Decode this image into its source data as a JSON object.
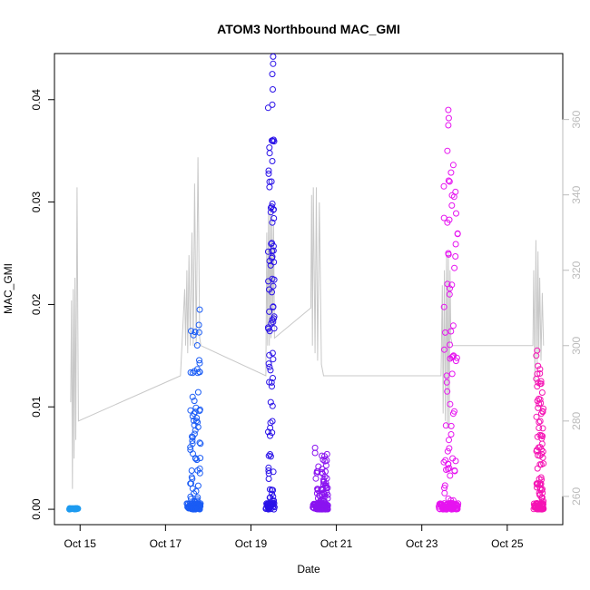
{
  "chart_data": {
    "type": "scatter",
    "title": "ATOM3 Northbound MAC_GMI",
    "xlabel": "Date",
    "ylabel": "MAC_GMI",
    "x_ticks": [
      "Oct 15",
      "Oct 17",
      "Oct 19",
      "Oct 21",
      "Oct 23",
      "Oct 25"
    ],
    "x_tick_days": [
      15,
      17,
      19,
      21,
      23,
      25
    ],
    "xlim_days": [
      14.4,
      26.3
    ],
    "ylim": [
      -0.0015,
      0.0445
    ],
    "y_ticks": [
      "0.00",
      "0.01",
      "0.02",
      "0.03",
      "0.04"
    ],
    "y_tick_values": [
      0,
      0.01,
      0.02,
      0.03,
      0.04
    ],
    "y2lim": [
      252.5,
      377.5
    ],
    "y2_ticks": [
      "260",
      "280",
      "300",
      "320",
      "340",
      "360"
    ],
    "y2_tick_values": [
      260,
      280,
      300,
      320,
      340,
      360
    ],
    "grid": false,
    "series": [
      {
        "color": "#1e9bf0",
        "x_start": 14.75,
        "x_end": 14.95,
        "low": 0.0,
        "high": 0.0001,
        "max_points": []
      },
      {
        "color": "#1a5cf5",
        "x_start": 17.5,
        "x_end": 17.82,
        "low": 0.0,
        "high": 0.0195,
        "max_points": [
          [
            17.8,
            0.0195
          ],
          [
            17.78,
            0.018
          ],
          [
            17.75,
            0.0085
          ],
          [
            17.7,
            0.005
          ]
        ]
      },
      {
        "color": "#2a12e8",
        "x_start": 19.35,
        "x_end": 19.55,
        "low": 0.0,
        "high": 0.0442,
        "max_points": [
          [
            19.52,
            0.0442
          ],
          [
            19.52,
            0.0435
          ],
          [
            19.5,
            0.0425
          ],
          [
            19.51,
            0.041
          ],
          [
            19.5,
            0.0395
          ],
          [
            19.49,
            0.036
          ],
          [
            19.5,
            0.034
          ],
          [
            19.48,
            0.032
          ],
          [
            19.5,
            0.028
          ],
          [
            19.49,
            0.026
          ],
          [
            19.5,
            0.0225
          ],
          [
            19.5,
            0.0185
          ],
          [
            19.49,
            0.012
          ]
        ]
      },
      {
        "color": "#8a14f0",
        "x_start": 20.45,
        "x_end": 20.8,
        "low": 0.0,
        "high": 0.006,
        "max_points": [
          [
            20.5,
            0.006
          ],
          [
            20.5,
            0.0055
          ],
          [
            20.52,
            0.003
          ]
        ]
      },
      {
        "color": "#e614f0",
        "x_start": 23.4,
        "x_end": 23.85,
        "low": 0.0,
        "high": 0.039,
        "max_points": [
          [
            23.62,
            0.039
          ],
          [
            23.63,
            0.0382
          ],
          [
            23.62,
            0.0375
          ],
          [
            23.6,
            0.035
          ],
          [
            23.65,
            0.032
          ],
          [
            23.6,
            0.028
          ],
          [
            23.62,
            0.025
          ],
          [
            23.6,
            0.022
          ]
        ]
      },
      {
        "color": "#f514b4",
        "x_start": 25.62,
        "x_end": 25.85,
        "low": 0.0,
        "high": 0.0155,
        "max_points": [
          [
            25.7,
            0.0155
          ],
          [
            25.68,
            0.015
          ],
          [
            25.72,
            0.014
          ],
          [
            25.7,
            0.012
          ]
        ]
      }
    ],
    "secondary_series": {
      "color": "#c8c8c8",
      "points": [
        [
          14.78,
          285
        ],
        [
          14.8,
          312
        ],
        [
          14.82,
          262
        ],
        [
          14.84,
          315
        ],
        [
          14.86,
          270
        ],
        [
          14.88,
          318
        ],
        [
          14.9,
          275
        ],
        [
          14.93,
          342
        ],
        [
          14.96,
          280
        ],
        [
          17.35,
          292
        ],
        [
          17.45,
          315
        ],
        [
          17.47,
          300
        ],
        [
          17.5,
          320
        ],
        [
          17.52,
          298
        ],
        [
          17.55,
          324
        ],
        [
          17.58,
          300
        ],
        [
          17.62,
          330
        ],
        [
          17.65,
          300
        ],
        [
          17.68,
          343
        ],
        [
          17.72,
          300
        ],
        [
          17.76,
          350
        ],
        [
          17.8,
          302
        ],
        [
          17.83,
          300
        ],
        [
          19.35,
          292
        ],
        [
          19.37,
          330
        ],
        [
          19.39,
          300
        ],
        [
          19.41,
          335
        ],
        [
          19.43,
          300
        ],
        [
          19.45,
          338
        ],
        [
          19.47,
          302
        ],
        [
          19.49,
          335
        ],
        [
          19.51,
          305
        ],
        [
          19.53,
          332
        ],
        [
          19.55,
          302
        ],
        [
          20.4,
          310
        ],
        [
          20.42,
          340
        ],
        [
          20.44,
          300
        ],
        [
          20.46,
          342
        ],
        [
          20.5,
          298
        ],
        [
          20.53,
          342
        ],
        [
          20.56,
          296
        ],
        [
          20.6,
          338
        ],
        [
          20.65,
          295
        ],
        [
          20.7,
          292
        ],
        [
          23.45,
          292
        ],
        [
          23.48,
          316
        ],
        [
          23.5,
          282
        ],
        [
          23.53,
          320
        ],
        [
          23.55,
          280
        ],
        [
          23.58,
          324
        ],
        [
          23.6,
          278
        ],
        [
          23.62,
          325
        ],
        [
          23.64,
          278
        ],
        [
          23.66,
          320
        ],
        [
          23.68,
          302
        ],
        [
          23.72,
          300
        ],
        [
          25.6,
          300
        ],
        [
          25.62,
          320
        ],
        [
          25.65,
          290
        ],
        [
          25.67,
          328
        ],
        [
          25.7,
          295
        ],
        [
          25.72,
          325
        ],
        [
          25.74,
          298
        ],
        [
          25.76,
          318
        ],
        [
          25.79,
          296
        ],
        [
          25.82,
          314
        ],
        [
          25.85,
          300
        ]
      ]
    }
  }
}
